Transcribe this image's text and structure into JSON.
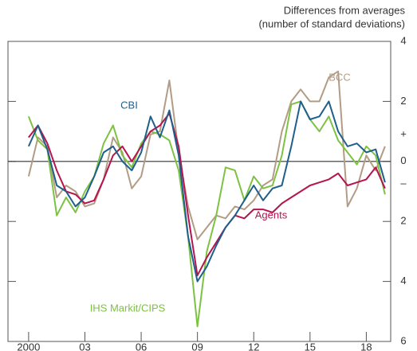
{
  "chart_data": {
    "type": "line",
    "units_lines": [
      "Differences from averages",
      "(number of standard deviations)"
    ],
    "x": [
      2000,
      2000.5,
      2001,
      2001.5,
      2002,
      2002.5,
      2003,
      2003.5,
      2004,
      2004.5,
      2005,
      2005.5,
      2006,
      2006.5,
      2007,
      2007.5,
      2008,
      2008.5,
      2009,
      2009.5,
      2010,
      2010.5,
      2011,
      2011.5,
      2012,
      2012.5,
      2013,
      2013.5,
      2014,
      2014.5,
      2015,
      2015.5,
      2016,
      2016.5,
      2017,
      2017.5,
      2018,
      2018.5,
      2019
    ],
    "xlim": [
      1998.9,
      2019.3
    ],
    "xticks": [
      {
        "value": 2000,
        "label": "2000"
      },
      {
        "value": 2003,
        "label": "03"
      },
      {
        "value": 2006,
        "label": "06"
      },
      {
        "value": 2009,
        "label": "09"
      },
      {
        "value": 2012,
        "label": "12"
      },
      {
        "value": 2015,
        "label": "15"
      },
      {
        "value": 2018,
        "label": "18"
      }
    ],
    "ylim": [
      -6,
      4
    ],
    "yticks": [
      4,
      2,
      0,
      {
        "value": -2,
        "label": "2"
      },
      {
        "value": -4,
        "label": "4"
      },
      {
        "value": -6,
        "label": "6"
      }
    ],
    "y_sign_labels": [
      {
        "value": 0.9,
        "label": "+"
      },
      {
        "value": -0.75,
        "label": "–"
      }
    ],
    "zero_line": true,
    "series": [
      {
        "name": "BCC",
        "color": "#b39c85",
        "values": [
          -0.5,
          0.8,
          0.5,
          -1.2,
          -0.8,
          -1.0,
          -1.5,
          -1.4,
          -0.6,
          0.8,
          0.3,
          -0.9,
          -0.5,
          0.9,
          1.0,
          2.7,
          0.3,
          -1.5,
          -2.6,
          -2.2,
          -1.8,
          -1.9,
          -1.5,
          -1.6,
          -1.3,
          -0.8,
          -0.6,
          1.0,
          2.0,
          2.4,
          2.0,
          2.0,
          2.8,
          3.0,
          -1.5,
          -0.9,
          0.2,
          -0.3,
          0.5
        ]
      },
      {
        "name": "IHS Markit/CIPS",
        "color": "#7dc242",
        "values": [
          1.5,
          0.7,
          0.4,
          -1.8,
          -1.2,
          -1.7,
          -1.0,
          -0.5,
          0.6,
          1.2,
          0.2,
          -0.2,
          0.6,
          1.0,
          0.9,
          0.7,
          -0.3,
          -2.5,
          -5.5,
          -3.0,
          -1.8,
          -0.2,
          -0.3,
          -1.3,
          -0.5,
          -0.9,
          -0.8,
          0.2,
          1.9,
          2.0,
          1.4,
          1.0,
          1.5,
          0.7,
          0.3,
          -0.1,
          0.5,
          0.2,
          -1.1
        ]
      },
      {
        "name": "Agents",
        "color": "#b5144e",
        "values": [
          0.8,
          1.2,
          0.6,
          -0.3,
          -1.0,
          -1.1,
          -1.4,
          -1.3,
          -0.6,
          0.2,
          0.5,
          0,
          0.5,
          1.0,
          1.2,
          1.6,
          0.5,
          -1.8,
          -3.8,
          -3.2,
          -2.7,
          -2.2,
          -1.8,
          -1.9,
          -1.6,
          -1.6,
          -1.7,
          -1.4,
          -1.2,
          -1.0,
          -0.8,
          -0.7,
          -0.6,
          -0.4,
          -0.8,
          -0.7,
          -0.6,
          -0.2,
          -0.9
        ]
      },
      {
        "name": "CBI",
        "color": "#1f5f8b",
        "values": [
          0.5,
          1.2,
          0.4,
          -0.8,
          -1.0,
          -1.5,
          -1.2,
          -0.5,
          0.3,
          0.5,
          0,
          -0.3,
          0.3,
          1.5,
          0.8,
          1.7,
          0.2,
          -2.5,
          -4.0,
          -3.5,
          -2.8,
          -2.2,
          -1.8,
          -1.3,
          -0.8,
          -1.3,
          -0.9,
          -0.8,
          0.5,
          2.0,
          1.4,
          1.5,
          2.0,
          1.0,
          0.5,
          0.6,
          0.3,
          0.4,
          -0.7
        ]
      }
    ]
  }
}
